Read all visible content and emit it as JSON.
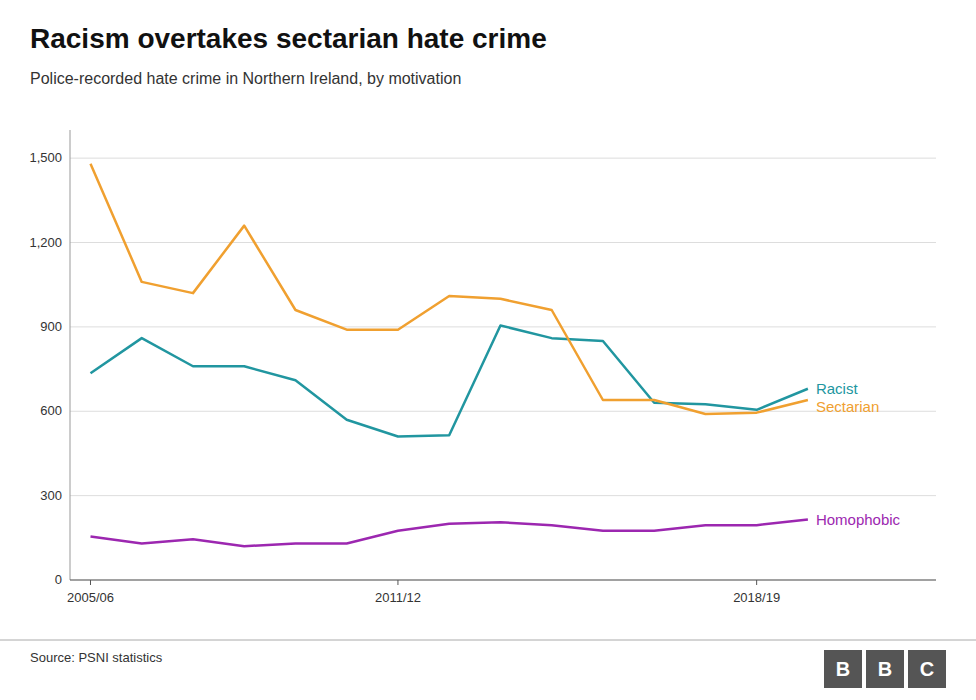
{
  "chart_data": {
    "type": "line",
    "title": "Racism overtakes sectarian hate crime",
    "subtitle": "Police-recorded hate crime in Northern Ireland, by motivation",
    "source": "Source: PSNI statistics",
    "annotations": [
      "B",
      "B",
      "C"
    ],
    "x": [
      2005,
      2006,
      2007,
      2008,
      2009,
      2010,
      2011,
      2012,
      2013,
      2014,
      2015,
      2016,
      2017,
      2018,
      2019
    ],
    "series": [
      {
        "name": "Racist",
        "color": "#2196a0",
        "values": [
          735,
          860,
          760,
          760,
          710,
          570,
          510,
          515,
          905,
          860,
          850,
          630,
          625,
          605,
          680
        ]
      },
      {
        "name": "Sectarian",
        "color": "#f0a030",
        "values": [
          1480,
          1060,
          1020,
          1260,
          960,
          890,
          890,
          1010,
          1000,
          960,
          640,
          640,
          590,
          595,
          640
        ]
      },
      {
        "name": "Homophobic",
        "color": "#9c27b0",
        "values": [
          155,
          130,
          145,
          120,
          130,
          130,
          175,
          200,
          205,
          195,
          175,
          175,
          195,
          195,
          215
        ]
      }
    ],
    "xlim": [
      2004.6,
      2021.5
    ],
    "xticks": [
      {
        "value": 2005,
        "label": "2005/06"
      },
      {
        "value": 2011,
        "label": "2011/12"
      },
      {
        "value": 2018,
        "label": "2018/19"
      }
    ],
    "ylim": [
      0,
      1600
    ],
    "yticks": [
      0,
      300,
      600,
      900,
      {
        "value": 1200,
        "label": "1,200"
      },
      {
        "value": 1500,
        "label": "1,500"
      }
    ],
    "grid": true
  }
}
